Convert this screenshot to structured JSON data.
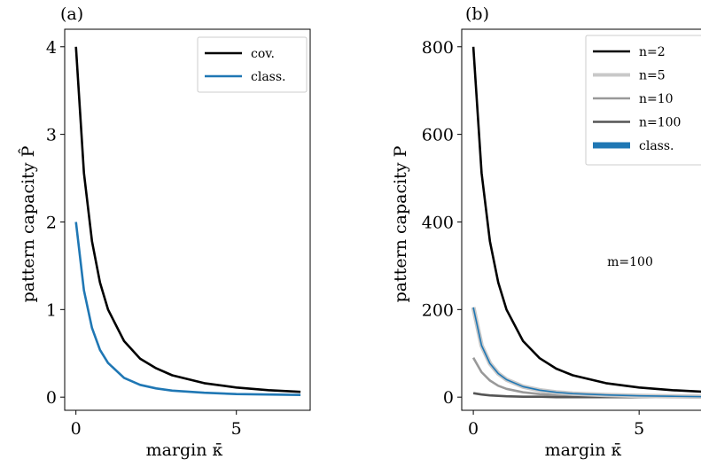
{
  "chart_data": [
    {
      "panel_label": "(a)",
      "type": "line",
      "xlabel": "margin κ̄",
      "ylabel": "pattern capacity P̂",
      "xlim": [
        -0.35,
        7.3
      ],
      "ylim": [
        -0.15,
        4.2
      ],
      "xticks": [
        0,
        5
      ],
      "yticks": [
        0,
        1,
        2,
        3,
        4
      ],
      "grid": false,
      "legend_position": "top-right",
      "series": [
        {
          "name": "cov.",
          "color": "#000000",
          "kind": "normal",
          "x": [
            0,
            0.25,
            0.5,
            0.75,
            1.0,
            1.5,
            2.0,
            2.5,
            3.0,
            4.0,
            5.0,
            6.0,
            7.0
          ],
          "y": [
            4.0,
            2.56,
            1.78,
            1.31,
            1.0,
            0.64,
            0.44,
            0.33,
            0.25,
            0.16,
            0.11,
            0.08,
            0.06
          ]
        },
        {
          "name": "class.",
          "color": "#1f77b4",
          "kind": "normal",
          "x": [
            0,
            0.25,
            0.5,
            0.75,
            1.0,
            1.5,
            2.0,
            2.5,
            3.0,
            4.0,
            5.0,
            6.0,
            7.0
          ],
          "y": [
            2.0,
            1.22,
            0.79,
            0.54,
            0.39,
            0.22,
            0.14,
            0.1,
            0.075,
            0.05,
            0.035,
            0.03,
            0.025
          ]
        }
      ]
    },
    {
      "panel_label": "(b)",
      "type": "line",
      "xlabel": "margin κ̄",
      "ylabel": "pattern capacity P",
      "xlim": [
        -0.35,
        7.0
      ],
      "ylim": [
        -30,
        840
      ],
      "xticks": [
        0,
        5
      ],
      "yticks": [
        0,
        200,
        400,
        600,
        800
      ],
      "grid": false,
      "legend_position": "top-right",
      "annotation": "m=100",
      "series": [
        {
          "name": "n=2",
          "color": "#000000",
          "kind": "normal",
          "x": [
            0,
            0.25,
            0.5,
            0.75,
            1.0,
            1.5,
            2.0,
            2.5,
            3.0,
            4.0,
            5.0,
            6.0,
            7.0
          ],
          "y": [
            800,
            512,
            356,
            262,
            200,
            128,
            89,
            65,
            50,
            32,
            22,
            16,
            12
          ]
        },
        {
          "name": "n=5",
          "color": "#c8c8c8",
          "kind": "normal",
          "x": [
            0,
            0.25,
            0.5,
            0.75,
            1.0,
            1.5,
            2.0,
            2.5,
            3.0,
            4.0,
            5.0,
            6.0,
            7.0
          ],
          "y": [
            205,
            118,
            77,
            54,
            40,
            24,
            16,
            11,
            8,
            5,
            3,
            2,
            1
          ]
        },
        {
          "name": "n=10",
          "color": "#999999",
          "kind": "normal",
          "x": [
            0,
            0.25,
            0.5,
            0.75,
            1.0,
            1.5,
            2.0,
            2.5,
            3.0,
            4.0,
            5.0,
            6.0,
            7.0
          ],
          "y": [
            90,
            57,
            38,
            26,
            19,
            11,
            7,
            5,
            4,
            2,
            1,
            1,
            0
          ]
        },
        {
          "name": "n=100",
          "color": "#555555",
          "kind": "normal",
          "x": [
            0,
            0.25,
            0.5,
            0.75,
            1.0,
            1.5,
            2.0,
            2.5,
            3.0,
            4.0,
            5.0,
            6.0,
            7.0
          ],
          "y": [
            9,
            6,
            4,
            3,
            2,
            1,
            1,
            0,
            0,
            0,
            0,
            0,
            0
          ]
        },
        {
          "name": "class.",
          "color": "#1f77b4",
          "kind": "thin",
          "x": [
            0,
            0.25,
            0.5,
            0.75,
            1.0,
            1.5,
            2.0,
            2.5,
            3.0,
            4.0,
            5.0,
            6.0,
            7.0
          ],
          "y": [
            205,
            118,
            77,
            54,
            40,
            24,
            16,
            11,
            8,
            5,
            3,
            2,
            1
          ]
        }
      ]
    }
  ]
}
